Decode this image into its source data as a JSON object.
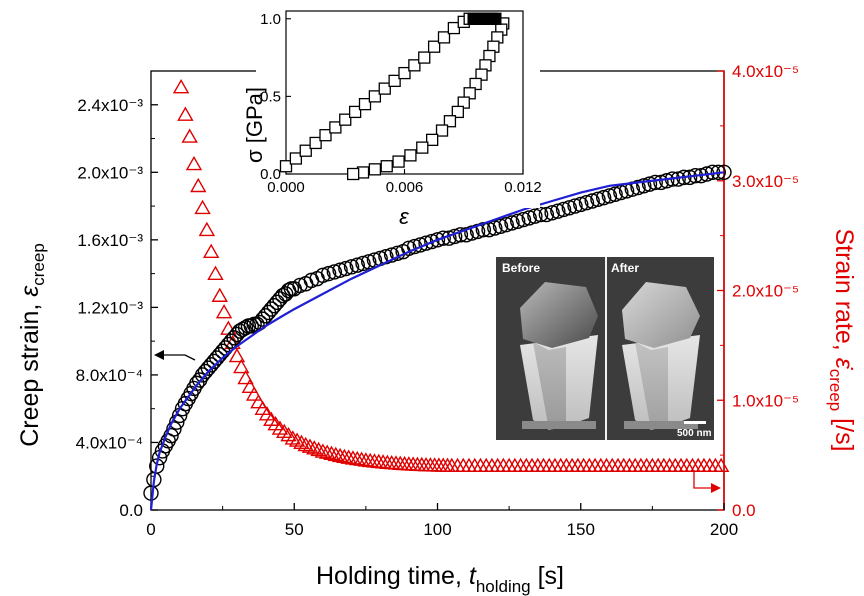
{
  "chart_data": [
    {
      "type": "scatter",
      "xlabel": {
        "main": "Holding time, ",
        "var": "t",
        "sub": "holding",
        "unit": " [s]"
      },
      "ylabel_left": {
        "main": "Creep strain, ",
        "var": "ε",
        "sub": "creep"
      },
      "ylabel_right": {
        "main": "Strain rate, ",
        "var": "ε̇",
        "sub": "creep",
        "unit": " [/s]"
      },
      "xlim": [
        0,
        200
      ],
      "ylim_left": [
        0,
        0.0026
      ],
      "ylim_right": [
        0,
        4e-05
      ],
      "x_ticks": [
        "0",
        "50",
        "100",
        "150",
        "200"
      ],
      "y_left_ticks": [
        {
          "v": 0,
          "label": "0.0"
        },
        {
          "v": 0.0004,
          "label": "4.0x10⁻⁴"
        },
        {
          "v": 0.0008,
          "label": "8.0x10⁻⁴"
        },
        {
          "v": 0.0012,
          "label": "1.2x10⁻³"
        },
        {
          "v": 0.0016,
          "label": "1.6x10⁻³"
        },
        {
          "v": 0.002,
          "label": "2.0x10⁻³"
        },
        {
          "v": 0.0024,
          "label": "2.4x10⁻³"
        }
      ],
      "y_right_ticks": [
        {
          "v": 0,
          "label": "0.0"
        },
        {
          "v": 1e-05,
          "label": "1.0x10⁻⁵"
        },
        {
          "v": 2e-05,
          "label": "2.0x10⁻⁵"
        },
        {
          "v": 3e-05,
          "label": "3.0x10⁻⁵"
        },
        {
          "v": 4e-05,
          "label": "4.0x10⁻⁵"
        }
      ],
      "creep_strain_points": [
        [
          0,
          0.0001
        ],
        [
          1,
          0.00018
        ],
        [
          2,
          0.00026
        ],
        [
          3,
          0.00031
        ],
        [
          4,
          0.00035
        ],
        [
          5,
          0.00038
        ],
        [
          6,
          0.00041
        ],
        [
          7,
          0.00044
        ],
        [
          8,
          0.00048
        ],
        [
          9,
          0.00052
        ],
        [
          10,
          0.00056
        ],
        [
          11,
          0.0006
        ],
        [
          12,
          0.00063
        ],
        [
          13,
          0.00066
        ],
        [
          14,
          0.00069
        ],
        [
          15,
          0.00072
        ],
        [
          16,
          0.00075
        ],
        [
          17,
          0.00077
        ],
        [
          18,
          0.0008
        ],
        [
          19,
          0.00082
        ],
        [
          20,
          0.00084
        ],
        [
          21,
          0.00086
        ],
        [
          22,
          0.00088
        ],
        [
          23,
          0.0009
        ],
        [
          24,
          0.00092
        ],
        [
          25,
          0.00094
        ],
        [
          26,
          0.00096
        ],
        [
          27,
          0.00098
        ],
        [
          28,
          0.001
        ],
        [
          29,
          0.00102
        ],
        [
          30,
          0.00104
        ],
        [
          31,
          0.00106
        ],
        [
          32,
          0.00107
        ],
        [
          33,
          0.00108
        ],
        [
          34,
          0.00109
        ],
        [
          35,
          0.00109
        ],
        [
          36,
          0.0011
        ],
        [
          37,
          0.0011
        ],
        [
          38,
          0.00111
        ],
        [
          39,
          0.00113
        ],
        [
          40,
          0.00115
        ],
        [
          41,
          0.00117
        ],
        [
          42,
          0.00119
        ],
        [
          43,
          0.00121
        ],
        [
          44,
          0.00123
        ],
        [
          45,
          0.00125
        ],
        [
          46,
          0.00127
        ],
        [
          47,
          0.00128
        ],
        [
          48,
          0.0013
        ],
        [
          49,
          0.00131
        ],
        [
          50,
          0.00131
        ],
        [
          52,
          0.00133
        ],
        [
          54,
          0.00134
        ],
        [
          56,
          0.00136
        ],
        [
          58,
          0.00137
        ],
        [
          60,
          0.00139
        ],
        [
          62,
          0.0014
        ],
        [
          64,
          0.00141
        ],
        [
          66,
          0.00142
        ],
        [
          68,
          0.00143
        ],
        [
          70,
          0.00144
        ],
        [
          72,
          0.00145
        ],
        [
          74,
          0.00146
        ],
        [
          76,
          0.00147
        ],
        [
          78,
          0.00148
        ],
        [
          80,
          0.00149
        ],
        [
          82,
          0.0015
        ],
        [
          84,
          0.00151
        ],
        [
          86,
          0.00152
        ],
        [
          88,
          0.00153
        ],
        [
          90,
          0.00155
        ],
        [
          92,
          0.00156
        ],
        [
          94,
          0.00157
        ],
        [
          96,
          0.00158
        ],
        [
          98,
          0.00159
        ],
        [
          100,
          0.0016
        ],
        [
          102,
          0.00161
        ],
        [
          104,
          0.00161
        ],
        [
          106,
          0.00162
        ],
        [
          108,
          0.00163
        ],
        [
          110,
          0.00163
        ],
        [
          112,
          0.00164
        ],
        [
          114,
          0.00165
        ],
        [
          116,
          0.00166
        ],
        [
          118,
          0.00166
        ],
        [
          120,
          0.00167
        ],
        [
          122,
          0.00168
        ],
        [
          124,
          0.00169
        ],
        [
          126,
          0.0017
        ],
        [
          128,
          0.00171
        ],
        [
          130,
          0.00172
        ],
        [
          132,
          0.00173
        ],
        [
          134,
          0.00174
        ],
        [
          136,
          0.00175
        ],
        [
          138,
          0.00175
        ],
        [
          140,
          0.00176
        ],
        [
          142,
          0.00177
        ],
        [
          144,
          0.00178
        ],
        [
          146,
          0.00179
        ],
        [
          148,
          0.0018
        ],
        [
          150,
          0.00181
        ],
        [
          152,
          0.00182
        ],
        [
          154,
          0.00183
        ],
        [
          156,
          0.00184
        ],
        [
          158,
          0.00185
        ],
        [
          160,
          0.00186
        ],
        [
          162,
          0.00187
        ],
        [
          164,
          0.00188
        ],
        [
          166,
          0.00189
        ],
        [
          168,
          0.0019
        ],
        [
          170,
          0.00191
        ],
        [
          172,
          0.00192
        ],
        [
          174,
          0.00193
        ],
        [
          176,
          0.00194
        ],
        [
          178,
          0.00194
        ],
        [
          180,
          0.00195
        ],
        [
          182,
          0.00196
        ],
        [
          184,
          0.00196
        ],
        [
          186,
          0.00197
        ],
        [
          188,
          0.00197
        ],
        [
          190,
          0.00198
        ],
        [
          192,
          0.00198
        ],
        [
          194,
          0.00199
        ],
        [
          196,
          0.002
        ],
        [
          198,
          0.002
        ],
        [
          200,
          0.002
        ]
      ],
      "fit_curve": [
        [
          0,
          0.0
        ],
        [
          1,
          0.00017
        ],
        [
          2,
          0.00027
        ],
        [
          3,
          0.00034
        ],
        [
          5,
          0.00043
        ],
        [
          7,
          0.00051
        ],
        [
          10,
          0.0006
        ],
        [
          13,
          0.00067
        ],
        [
          16,
          0.00074
        ],
        [
          20,
          0.00082
        ],
        [
          25,
          0.0009
        ],
        [
          30,
          0.00097
        ],
        [
          35,
          0.00103
        ],
        [
          40,
          0.00109
        ],
        [
          45,
          0.00114
        ],
        [
          50,
          0.00119
        ],
        [
          60,
          0.00128
        ],
        [
          70,
          0.00137
        ],
        [
          80,
          0.00145
        ],
        [
          90,
          0.00153
        ],
        [
          100,
          0.0016
        ],
        [
          110,
          0.00166
        ],
        [
          120,
          0.00172
        ],
        [
          130,
          0.00178
        ],
        [
          140,
          0.00183
        ],
        [
          150,
          0.00188
        ],
        [
          160,
          0.00192
        ],
        [
          170,
          0.00194
        ],
        [
          180,
          0.00196
        ],
        [
          190,
          0.00198
        ],
        [
          200,
          0.002
        ]
      ],
      "strain_rate_points": [
        [
          10.5,
          3.85e-05
        ],
        [
          12,
          3.6e-05
        ],
        [
          13.5,
          3.4e-05
        ],
        [
          15,
          3.15e-05
        ],
        [
          16.5,
          2.95e-05
        ],
        [
          18,
          2.75e-05
        ],
        [
          19.5,
          2.55e-05
        ],
        [
          21,
          2.35e-05
        ],
        [
          22.5,
          2.15e-05
        ],
        [
          24,
          1.95e-05
        ],
        [
          25.5,
          1.8e-05
        ],
        [
          27,
          1.65e-05
        ],
        [
          28.5,
          1.52e-05
        ],
        [
          30,
          1.4e-05
        ],
        [
          31.5,
          1.3e-05
        ],
        [
          33,
          1.2e-05
        ],
        [
          34.5,
          1.12e-05
        ],
        [
          36,
          1.05e-05
        ],
        [
          37.5,
          9.8e-06
        ],
        [
          39,
          9.2e-06
        ],
        [
          40.5,
          8.7e-06
        ],
        [
          42,
          8.2e-06
        ],
        [
          43.5,
          7.8e-06
        ],
        [
          45,
          7.4e-06
        ],
        [
          46.5,
          7.1e-06
        ],
        [
          48,
          6.8e-06
        ],
        [
          49.5,
          6.5e-06
        ],
        [
          51,
          6.3e-06
        ],
        [
          52.5,
          6.1e-06
        ],
        [
          54,
          5.9e-06
        ],
        [
          55.5,
          5.75e-06
        ],
        [
          57,
          5.6e-06
        ],
        [
          58.5,
          5.45e-06
        ],
        [
          60,
          5.3e-06
        ],
        [
          61.5,
          5.2e-06
        ],
        [
          63,
          5.1e-06
        ],
        [
          64.5,
          5e-06
        ],
        [
          66,
          4.9e-06
        ],
        [
          67.5,
          4.82e-06
        ],
        [
          69,
          4.75e-06
        ],
        [
          70.5,
          4.68e-06
        ],
        [
          72,
          4.62e-06
        ],
        [
          73.5,
          4.56e-06
        ],
        [
          75,
          4.5e-06
        ],
        [
          76.5,
          4.45e-06
        ],
        [
          78,
          4.4e-06
        ],
        [
          79.5,
          4.36e-06
        ],
        [
          81,
          4.32e-06
        ],
        [
          82.5,
          4.28e-06
        ],
        [
          84,
          4.25e-06
        ],
        [
          85.5,
          4.22e-06
        ],
        [
          87,
          4.19e-06
        ],
        [
          88.5,
          4.16e-06
        ],
        [
          90,
          4.14e-06
        ],
        [
          91.5,
          4.12e-06
        ],
        [
          93,
          4.1e-06
        ],
        [
          94.5,
          4.08e-06
        ],
        [
          96,
          4.06e-06
        ],
        [
          97.5,
          4.05e-06
        ],
        [
          99,
          4.04e-06
        ],
        [
          100.5,
          4.03e-06
        ],
        [
          102,
          4.02e-06
        ],
        [
          103.5,
          4.01e-06
        ],
        [
          105,
          4e-06
        ],
        [
          107,
          4e-06
        ],
        [
          109,
          4e-06
        ],
        [
          111,
          4e-06
        ],
        [
          113,
          4e-06
        ],
        [
          115,
          4e-06
        ],
        [
          117,
          4e-06
        ],
        [
          119,
          4e-06
        ],
        [
          121,
          4e-06
        ],
        [
          123,
          4e-06
        ],
        [
          125,
          4e-06
        ],
        [
          127,
          4e-06
        ],
        [
          129,
          4e-06
        ],
        [
          131,
          4e-06
        ],
        [
          133,
          4e-06
        ],
        [
          135,
          4e-06
        ],
        [
          137,
          4e-06
        ],
        [
          139,
          4e-06
        ],
        [
          141,
          4e-06
        ],
        [
          143,
          4e-06
        ],
        [
          145,
          4e-06
        ],
        [
          147,
          4e-06
        ],
        [
          149,
          4e-06
        ],
        [
          151,
          4e-06
        ],
        [
          153,
          4e-06
        ],
        [
          155,
          4e-06
        ],
        [
          157,
          4e-06
        ],
        [
          159,
          4e-06
        ],
        [
          161,
          4e-06
        ],
        [
          163,
          4e-06
        ],
        [
          165,
          4e-06
        ],
        [
          167,
          4e-06
        ],
        [
          169,
          4e-06
        ],
        [
          171,
          4e-06
        ],
        [
          173,
          4e-06
        ],
        [
          175,
          4e-06
        ],
        [
          177,
          4e-06
        ],
        [
          179,
          4e-06
        ],
        [
          181,
          4e-06
        ],
        [
          183,
          4e-06
        ],
        [
          185,
          4e-06
        ],
        [
          187,
          4e-06
        ],
        [
          189,
          4e-06
        ],
        [
          191,
          4e-06
        ],
        [
          193,
          4e-06
        ],
        [
          195,
          4e-06
        ],
        [
          197,
          4e-06
        ],
        [
          199,
          4e-06
        ]
      ],
      "grid": false,
      "colors": {
        "strain": "#000000",
        "fit": "#1f1fd6",
        "rate": "#e00000"
      }
    },
    {
      "type": "scatter",
      "xlabel": "ε",
      "ylabel": "σ [GPa]",
      "xlim": [
        0,
        0.012
      ],
      "ylim": [
        0,
        1.05
      ],
      "x_ticks": [
        "0.000",
        "0.006",
        "0.012"
      ],
      "y_ticks": [
        "0.0",
        "0.5",
        "1.0"
      ],
      "loading": [
        [
          0.0,
          0.05
        ],
        [
          0.0005,
          0.1
        ],
        [
          0.001,
          0.15
        ],
        [
          0.0015,
          0.2
        ],
        [
          0.002,
          0.25
        ],
        [
          0.0025,
          0.3
        ],
        [
          0.003,
          0.35
        ],
        [
          0.0035,
          0.4
        ],
        [
          0.004,
          0.45
        ],
        [
          0.0045,
          0.5
        ],
        [
          0.005,
          0.55
        ],
        [
          0.0055,
          0.6
        ],
        [
          0.006,
          0.65
        ],
        [
          0.0065,
          0.7
        ],
        [
          0.007,
          0.75
        ],
        [
          0.0075,
          0.82
        ],
        [
          0.008,
          0.88
        ],
        [
          0.0085,
          0.94
        ],
        [
          0.009,
          0.98
        ],
        [
          0.0093,
          1.0
        ]
      ],
      "hold": [
        [
          0.0095,
          1.0
        ],
        [
          0.0098,
          1.0
        ],
        [
          0.01,
          1.0
        ],
        [
          0.0102,
          1.0
        ],
        [
          0.0104,
          1.0
        ],
        [
          0.0106,
          1.0
        ]
      ],
      "unloading": [
        [
          0.011,
          0.97
        ],
        [
          0.0109,
          0.93
        ],
        [
          0.0107,
          0.88
        ],
        [
          0.0105,
          0.82
        ],
        [
          0.0103,
          0.76
        ],
        [
          0.0101,
          0.7
        ],
        [
          0.0099,
          0.64
        ],
        [
          0.0096,
          0.58
        ],
        [
          0.0093,
          0.52
        ],
        [
          0.009,
          0.46
        ],
        [
          0.0087,
          0.4
        ],
        [
          0.0083,
          0.34
        ],
        [
          0.0079,
          0.28
        ],
        [
          0.0074,
          0.22
        ],
        [
          0.0069,
          0.17
        ],
        [
          0.0063,
          0.12
        ],
        [
          0.0057,
          0.08
        ],
        [
          0.0051,
          0.05
        ],
        [
          0.0045,
          0.03
        ],
        [
          0.0039,
          0.01
        ],
        [
          0.0034,
          0.0
        ]
      ]
    }
  ],
  "sem_image": {
    "before_label": "Before",
    "after_label": "After",
    "scale_label": "500 nm"
  }
}
